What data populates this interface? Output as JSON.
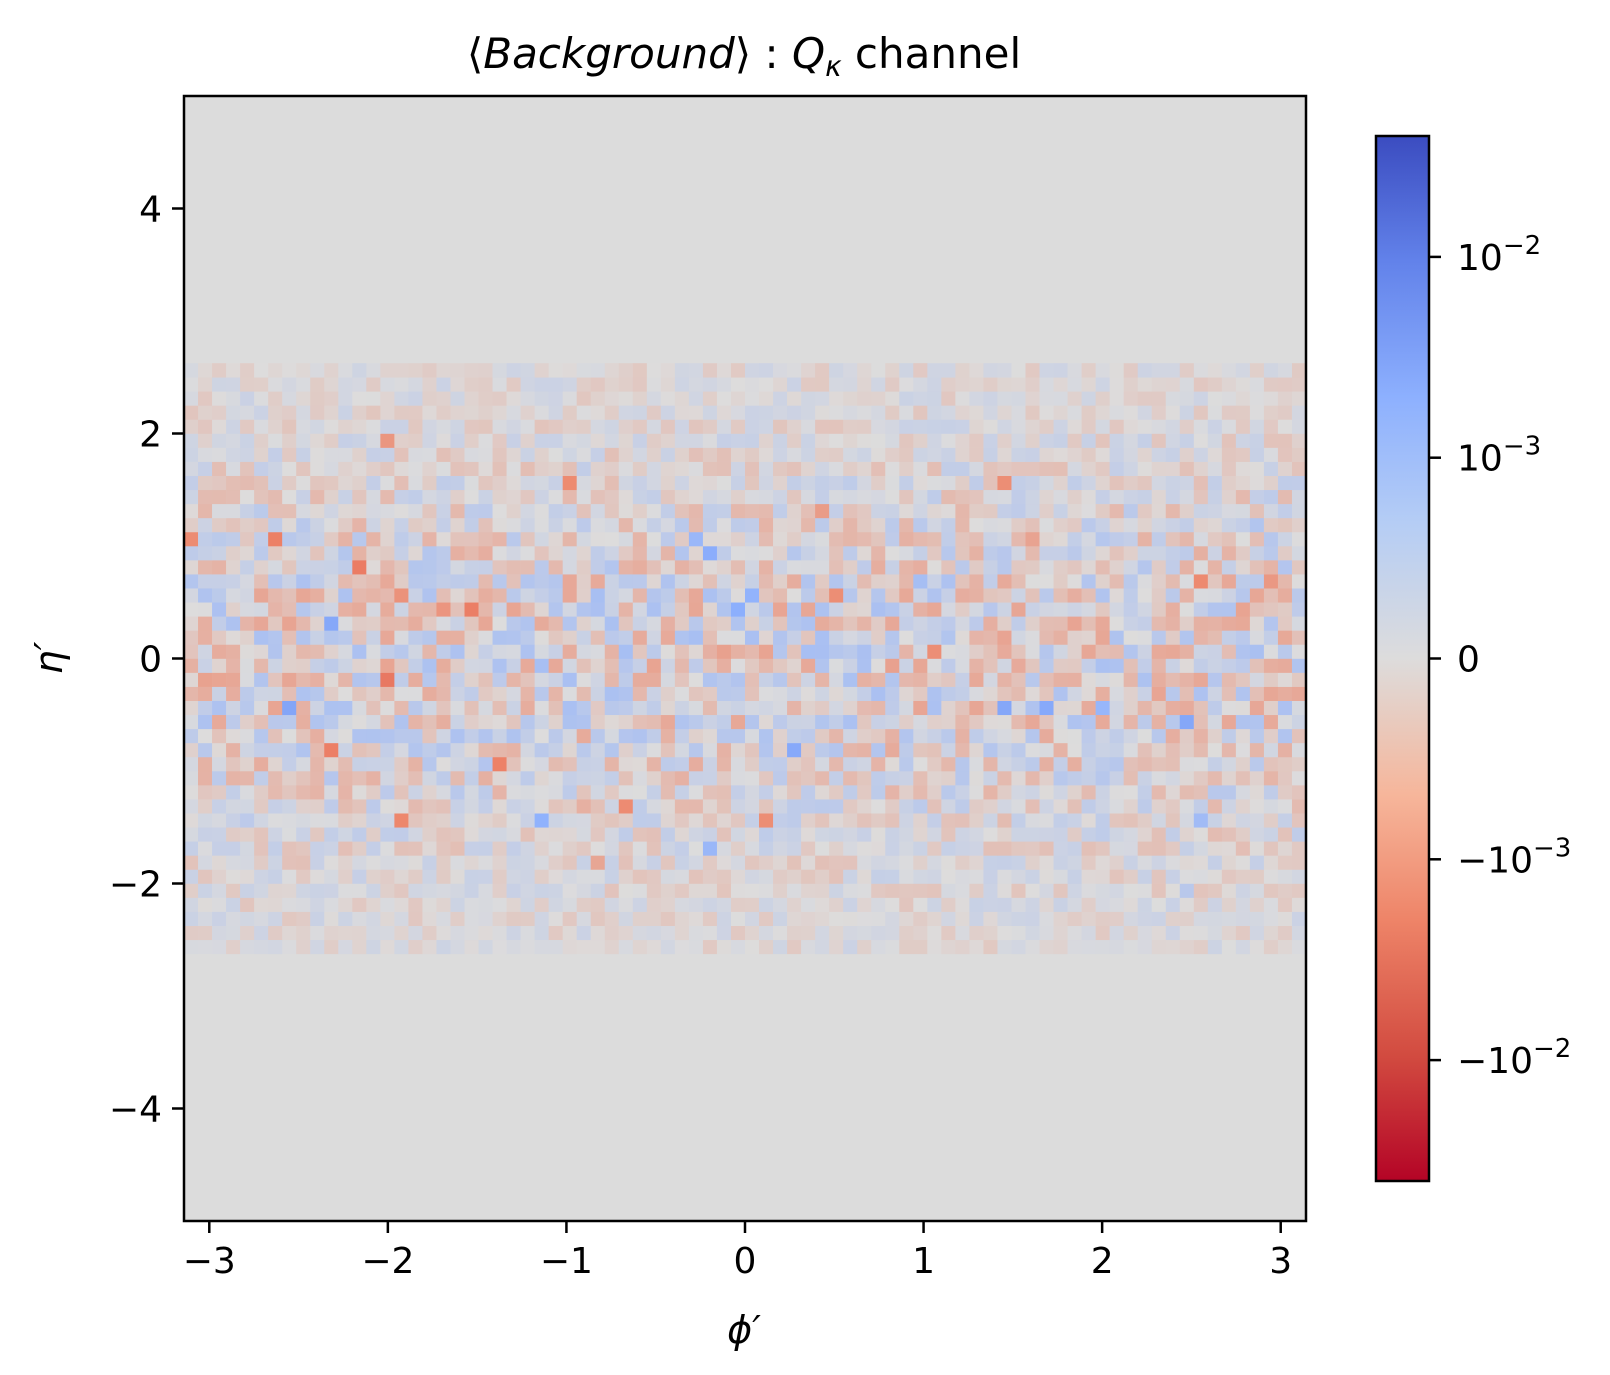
{
  "chart_data": {
    "type": "heatmap",
    "title": "⟨Background⟩ : Qκ channel",
    "title_parts": {
      "italic": "Background",
      "symbol": "Q",
      "subscript": "κ",
      "suffix": " channel"
    },
    "xlabel": "ϕ′",
    "ylabel": "η′",
    "xlim": [
      -3.1416,
      3.1416
    ],
    "ylim": [
      -5,
      5
    ],
    "x_ticks": [
      -3,
      -2,
      -1,
      0,
      1,
      2,
      3
    ],
    "x_tick_labels": [
      "−3",
      "−2",
      "−1",
      "0",
      "1",
      "2",
      "3"
    ],
    "y_ticks": [
      -4,
      -2,
      0,
      2,
      4
    ],
    "y_tick_labels": [
      "−4",
      "−2",
      "0",
      "2",
      "4"
    ],
    "grid": false,
    "colormap": "coolwarm_r",
    "colorbar": {
      "scale": "symlog",
      "range": [
        -0.04,
        0.04
      ],
      "ticks": [
        {
          "value": 0.01,
          "base": "10",
          "exp": "−2"
        },
        {
          "value": 0.001,
          "base": "10",
          "exp": "−3"
        },
        {
          "value": 0,
          "base": "0",
          "exp": ""
        },
        {
          "value": -0.001,
          "base": "−10",
          "exp": "−3"
        },
        {
          "value": -0.01,
          "base": "−10",
          "exp": "−2"
        }
      ]
    },
    "background_value": 0,
    "grid_bins": {
      "phi_bins": 80,
      "eta_bins": 80
    },
    "active_eta_range": [
      -2.6,
      2.6
    ],
    "value_amplitude_typical": 0.0007,
    "value_amplitude_max": 0.006
  },
  "colors": {
    "zero": "#dcdcdc",
    "max_blue": "#3b4cc0",
    "max_red": "#b40426"
  }
}
